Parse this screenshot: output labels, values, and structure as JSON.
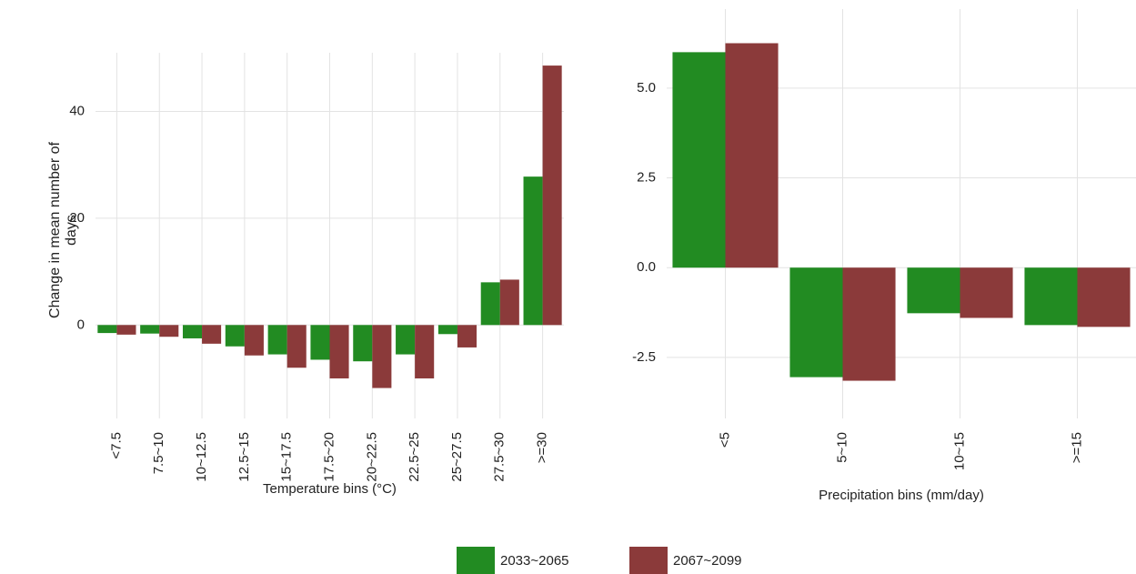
{
  "chart_data": [
    {
      "type": "bar",
      "x_label": "Temperature bins (°C)",
      "y_label": "Change in mean number of days",
      "categories": [
        "<7.5",
        "7.5~10",
        "10~12.5",
        "12.5~15",
        "15~17.5",
        "17.5~20",
        "20~22.5",
        "22.5~25",
        "25~27.5",
        "27.5~30",
        ">=30"
      ],
      "series": [
        {
          "name": "2033~2065",
          "color": "#228b22",
          "values": [
            -1.5,
            -1.6,
            -2.5,
            -4,
            -5.5,
            -6.5,
            -6.8,
            -5.5,
            -1.7,
            8,
            27.8
          ]
        },
        {
          "name": "2067~2099",
          "color": "#8b3a3a",
          "values": [
            -1.8,
            -2.2,
            -3.5,
            -5.7,
            -8,
            -10,
            -11.8,
            -10,
            -4.2,
            8.5,
            48.6
          ]
        }
      ],
      "ylim": [
        -17.5,
        51
      ],
      "yticks": [
        0,
        20,
        40
      ],
      "grid": true
    },
    {
      "type": "bar",
      "x_label": "Precipitation bins (mm/day)",
      "categories": [
        "<5",
        "5~10",
        "10~15",
        ">=15"
      ],
      "series": [
        {
          "color": "#228b22",
          "values": [
            6.0,
            -3.05,
            -1.27,
            -1.6
          ]
        },
        {
          "color": "#8b3a3a",
          "values": [
            6.25,
            -3.15,
            -1.4,
            -1.65
          ]
        }
      ],
      "ylim": [
        -4.2,
        7.2
      ],
      "yticks": [
        {
          "value": -2.5,
          "label": "-2.5"
        },
        {
          "value": 0,
          "label": "0.0"
        },
        {
          "value": 2.5,
          "label": "2.5"
        },
        {
          "value": 5,
          "label": "5.0"
        }
      ],
      "grid": true
    }
  ]
}
